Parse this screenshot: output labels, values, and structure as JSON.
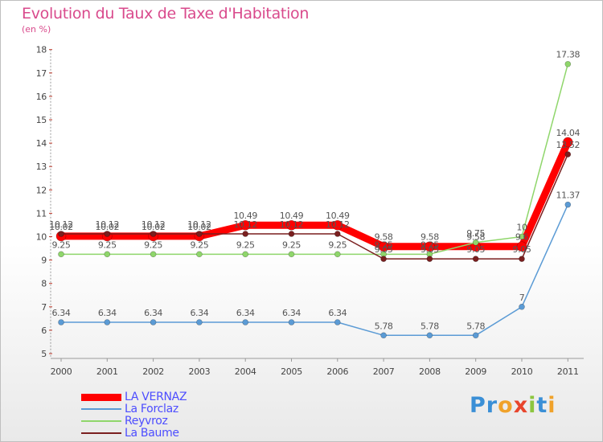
{
  "chart_data": {
    "type": "line",
    "title": "Evolution du Taux de Taxe d'Habitation",
    "subtitle": "(en %)",
    "xlabel": "",
    "ylabel": "",
    "ylim": [
      5,
      18
    ],
    "y_ticks": [
      "5",
      "6",
      "7",
      "8",
      "9",
      "10",
      "11",
      "12",
      "13",
      "14",
      "15",
      "16",
      "17",
      "18"
    ],
    "categories": [
      "2000",
      "2001",
      "2002",
      "2003",
      "2004",
      "2005",
      "2006",
      "2007",
      "2008",
      "2009",
      "2010",
      "2011"
    ],
    "series": [
      {
        "name": "LA VERNAZ",
        "color": "#ff0000",
        "values": [
          10.02,
          10.02,
          10.02,
          10.02,
          10.49,
          10.49,
          10.49,
          9.58,
          9.58,
          9.58,
          9.58,
          14.04
        ],
        "labels": [
          "10.02",
          "10.02",
          "10.02",
          "10.02",
          "10.49",
          "10.49",
          "10.49",
          "9.58",
          "9.58",
          "9.58",
          "9.6",
          "14.04"
        ]
      },
      {
        "name": "La Forclaz",
        "color": "#5b9bd5",
        "values": [
          6.34,
          6.34,
          6.34,
          6.34,
          6.34,
          6.34,
          6.34,
          5.78,
          5.78,
          5.78,
          7,
          11.37
        ],
        "labels": [
          "6.34",
          "6.34",
          "6.34",
          "6.34",
          "6.34",
          "6.34",
          "6.34",
          "5.78",
          "5.78",
          "5.78",
          "7",
          "11.37"
        ]
      },
      {
        "name": "Reyvroz",
        "color": "#8fd66b",
        "values": [
          9.25,
          9.25,
          9.25,
          9.25,
          9.25,
          9.25,
          9.25,
          9.25,
          9.25,
          9.75,
          10,
          17.38
        ],
        "labels": [
          "9.25",
          "9.25",
          "9.25",
          "9.25",
          "9.25",
          "9.25",
          "9.25",
          "9.25",
          "9.25",
          "9.75",
          "10",
          "17.38"
        ]
      },
      {
        "name": "La Baume",
        "color": "#7a1f1f",
        "values": [
          10.12,
          10.12,
          10.12,
          10.12,
          10.12,
          10.12,
          10.12,
          9.05,
          9.05,
          9.05,
          9.05,
          13.52
        ],
        "labels": [
          "10.12",
          "10.12",
          "10.12",
          "10.12",
          "10.12",
          "10.12",
          "10.12",
          "9.05",
          "9.05",
          "9.05",
          "9.05",
          "13.52"
        ]
      }
    ],
    "legend_position": "bottom-left",
    "grid": false
  },
  "logo": {
    "letters": [
      "P",
      "r",
      "o",
      "x",
      "i",
      "t",
      "i"
    ],
    "colors": [
      "#3a8fd6",
      "#3a8fd6",
      "#f0a22a",
      "#e8452c",
      "#8cc63f",
      "#3a8fd6",
      "#f0a22a"
    ]
  }
}
